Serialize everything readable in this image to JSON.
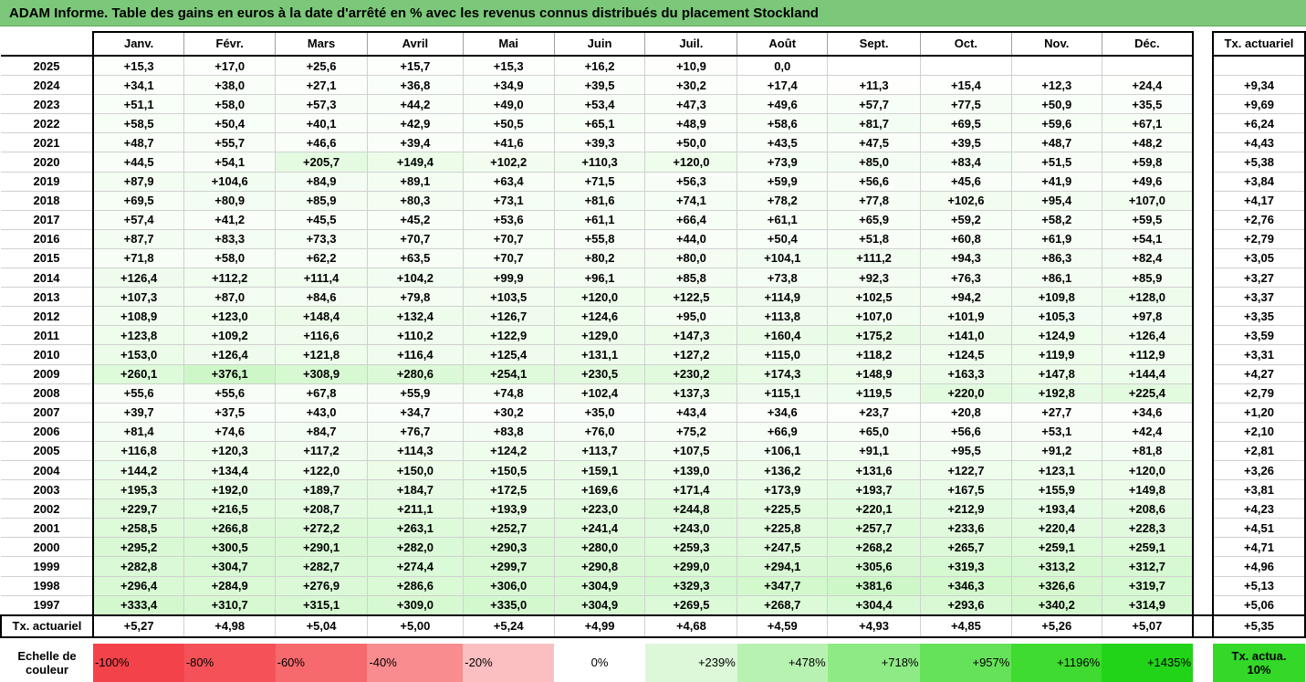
{
  "title": "ADAM Informe. Table des gains en euros à la date d'arrêté en % avec les revenus connus distribués du placement Stockland",
  "months": [
    "Janv.",
    "Févr.",
    "Mars",
    "Avril",
    "Mai",
    "Juin",
    "Juil.",
    "Août",
    "Sept.",
    "Oct.",
    "Nov.",
    "Déc."
  ],
  "act_header": "Tx. actuariel",
  "rows": [
    {
      "year": "2025",
      "vals": [
        "+15,3",
        "+17,0",
        "+25,6",
        "+15,7",
        "+15,3",
        "+16,2",
        "+10,9",
        "0,0",
        "",
        "",
        "",
        ""
      ],
      "act": ""
    },
    {
      "year": "2024",
      "vals": [
        "+34,1",
        "+38,0",
        "+27,1",
        "+36,8",
        "+34,9",
        "+39,5",
        "+30,2",
        "+17,4",
        "+11,3",
        "+15,4",
        "+12,3",
        "+24,4"
      ],
      "act": "+9,34"
    },
    {
      "year": "2023",
      "vals": [
        "+51,1",
        "+58,0",
        "+57,3",
        "+44,2",
        "+49,0",
        "+53,4",
        "+47,3",
        "+49,6",
        "+57,7",
        "+77,5",
        "+50,9",
        "+35,5"
      ],
      "act": "+9,69"
    },
    {
      "year": "2022",
      "vals": [
        "+58,5",
        "+50,4",
        "+40,1",
        "+42,9",
        "+50,5",
        "+65,1",
        "+48,9",
        "+58,6",
        "+81,7",
        "+69,5",
        "+59,6",
        "+67,1"
      ],
      "act": "+6,24"
    },
    {
      "year": "2021",
      "vals": [
        "+48,7",
        "+55,7",
        "+46,6",
        "+39,4",
        "+41,6",
        "+39,3",
        "+50,0",
        "+43,5",
        "+47,5",
        "+39,5",
        "+48,7",
        "+48,2"
      ],
      "act": "+4,43"
    },
    {
      "year": "2020",
      "vals": [
        "+44,5",
        "+54,1",
        "+205,7",
        "+149,4",
        "+102,2",
        "+110,3",
        "+120,0",
        "+73,9",
        "+85,0",
        "+83,4",
        "+51,5",
        "+59,8"
      ],
      "act": "+5,38"
    },
    {
      "year": "2019",
      "vals": [
        "+87,9",
        "+104,6",
        "+84,9",
        "+89,1",
        "+63,4",
        "+71,5",
        "+56,3",
        "+59,9",
        "+56,6",
        "+45,6",
        "+41,9",
        "+49,6"
      ],
      "act": "+3,84"
    },
    {
      "year": "2018",
      "vals": [
        "+69,5",
        "+80,9",
        "+85,9",
        "+80,3",
        "+73,1",
        "+81,6",
        "+74,1",
        "+78,2",
        "+77,8",
        "+102,6",
        "+95,4",
        "+107,0"
      ],
      "act": "+4,17"
    },
    {
      "year": "2017",
      "vals": [
        "+57,4",
        "+41,2",
        "+45,5",
        "+45,2",
        "+53,6",
        "+61,1",
        "+66,4",
        "+61,1",
        "+65,9",
        "+59,2",
        "+58,2",
        "+59,5"
      ],
      "act": "+2,76"
    },
    {
      "year": "2016",
      "vals": [
        "+87,7",
        "+83,3",
        "+73,3",
        "+70,7",
        "+70,7",
        "+55,8",
        "+44,0",
        "+50,4",
        "+51,8",
        "+60,8",
        "+61,9",
        "+54,1"
      ],
      "act": "+2,79"
    },
    {
      "year": "2015",
      "vals": [
        "+71,8",
        "+58,0",
        "+62,2",
        "+63,5",
        "+70,7",
        "+80,2",
        "+80,0",
        "+104,1",
        "+111,2",
        "+94,3",
        "+86,3",
        "+82,4"
      ],
      "act": "+3,05"
    },
    {
      "year": "2014",
      "vals": [
        "+126,4",
        "+112,2",
        "+111,4",
        "+104,2",
        "+99,9",
        "+96,1",
        "+85,8",
        "+73,8",
        "+92,3",
        "+76,3",
        "+86,1",
        "+85,9"
      ],
      "act": "+3,27"
    },
    {
      "year": "2013",
      "vals": [
        "+107,3",
        "+87,0",
        "+84,6",
        "+79,8",
        "+103,5",
        "+120,0",
        "+122,5",
        "+114,9",
        "+102,5",
        "+94,2",
        "+109,8",
        "+128,0"
      ],
      "act": "+3,37"
    },
    {
      "year": "2012",
      "vals": [
        "+108,9",
        "+123,0",
        "+148,4",
        "+132,4",
        "+126,7",
        "+124,6",
        "+95,0",
        "+113,8",
        "+107,0",
        "+101,9",
        "+105,3",
        "+97,8"
      ],
      "act": "+3,35"
    },
    {
      "year": "2011",
      "vals": [
        "+123,8",
        "+109,2",
        "+116,6",
        "+110,2",
        "+122,9",
        "+129,0",
        "+147,3",
        "+160,4",
        "+175,2",
        "+141,0",
        "+124,9",
        "+126,4"
      ],
      "act": "+3,59"
    },
    {
      "year": "2010",
      "vals": [
        "+153,0",
        "+126,4",
        "+121,8",
        "+116,4",
        "+125,4",
        "+131,1",
        "+127,2",
        "+115,0",
        "+118,2",
        "+124,5",
        "+119,9",
        "+112,9"
      ],
      "act": "+3,31"
    },
    {
      "year": "2009",
      "vals": [
        "+260,1",
        "+376,1",
        "+308,9",
        "+280,6",
        "+254,1",
        "+230,5",
        "+230,2",
        "+174,3",
        "+148,9",
        "+163,3",
        "+147,8",
        "+144,4"
      ],
      "act": "+4,27"
    },
    {
      "year": "2008",
      "vals": [
        "+55,6",
        "+55,6",
        "+67,8",
        "+55,9",
        "+74,8",
        "+102,4",
        "+137,3",
        "+115,1",
        "+119,5",
        "+220,0",
        "+192,8",
        "+225,4"
      ],
      "act": "+2,79"
    },
    {
      "year": "2007",
      "vals": [
        "+39,7",
        "+37,5",
        "+43,0",
        "+34,7",
        "+30,2",
        "+35,0",
        "+43,4",
        "+34,6",
        "+23,7",
        "+20,8",
        "+27,7",
        "+34,6"
      ],
      "act": "+1,20"
    },
    {
      "year": "2006",
      "vals": [
        "+81,4",
        "+74,6",
        "+84,7",
        "+76,7",
        "+83,8",
        "+76,0",
        "+75,2",
        "+66,9",
        "+65,0",
        "+56,6",
        "+53,1",
        "+42,4"
      ],
      "act": "+2,10"
    },
    {
      "year": "2005",
      "vals": [
        "+116,8",
        "+120,3",
        "+117,2",
        "+114,3",
        "+124,2",
        "+113,7",
        "+107,5",
        "+106,1",
        "+91,1",
        "+95,5",
        "+91,2",
        "+81,8"
      ],
      "act": "+2,81"
    },
    {
      "year": "2004",
      "vals": [
        "+144,2",
        "+134,4",
        "+122,0",
        "+150,0",
        "+150,5",
        "+159,1",
        "+139,0",
        "+136,2",
        "+131,6",
        "+122,7",
        "+123,1",
        "+120,0"
      ],
      "act": "+3,26"
    },
    {
      "year": "2003",
      "vals": [
        "+195,3",
        "+192,0",
        "+189,7",
        "+184,7",
        "+172,5",
        "+169,6",
        "+171,4",
        "+173,9",
        "+193,7",
        "+167,5",
        "+155,9",
        "+149,8"
      ],
      "act": "+3,81"
    },
    {
      "year": "2002",
      "vals": [
        "+229,7",
        "+216,5",
        "+208,7",
        "+211,1",
        "+193,9",
        "+223,0",
        "+244,8",
        "+225,5",
        "+220,1",
        "+212,9",
        "+193,4",
        "+208,6"
      ],
      "act": "+4,23"
    },
    {
      "year": "2001",
      "vals": [
        "+258,5",
        "+266,8",
        "+272,2",
        "+263,1",
        "+252,7",
        "+241,4",
        "+243,0",
        "+225,8",
        "+257,7",
        "+233,6",
        "+220,4",
        "+228,3"
      ],
      "act": "+4,51"
    },
    {
      "year": "2000",
      "vals": [
        "+295,2",
        "+300,5",
        "+290,1",
        "+282,0",
        "+290,3",
        "+280,0",
        "+259,3",
        "+247,5",
        "+268,2",
        "+265,7",
        "+259,1",
        "+259,1"
      ],
      "act": "+4,71"
    },
    {
      "year": "1999",
      "vals": [
        "+282,8",
        "+304,7",
        "+282,7",
        "+274,4",
        "+299,7",
        "+290,8",
        "+299,0",
        "+294,1",
        "+305,6",
        "+319,3",
        "+313,2",
        "+312,7"
      ],
      "act": "+4,96"
    },
    {
      "year": "1998",
      "vals": [
        "+296,4",
        "+284,9",
        "+276,9",
        "+286,6",
        "+306,0",
        "+304,9",
        "+329,3",
        "+347,7",
        "+381,6",
        "+346,3",
        "+326,6",
        "+319,7"
      ],
      "act": "+5,13"
    },
    {
      "year": "1997",
      "vals": [
        "+333,4",
        "+310,7",
        "+315,1",
        "+309,0",
        "+335,0",
        "+304,9",
        "+269,5",
        "+268,7",
        "+304,4",
        "+293,6",
        "+340,2",
        "+314,9"
      ],
      "act": "+5,06"
    }
  ],
  "total_row": {
    "label": "Tx. actuariel",
    "vals": [
      "+5,27",
      "+4,98",
      "+5,04",
      "+5,00",
      "+5,24",
      "+4,99",
      "+4,68",
      "+4,59",
      "+4,93",
      "+4,85",
      "+5,26",
      "+5,07"
    ],
    "act": "+5,35"
  },
  "scale": {
    "label": "Echelle de couleur",
    "items": [
      {
        "text": "-100%",
        "bg": "#f4424a",
        "align": "left"
      },
      {
        "text": "-80%",
        "bg": "#f45258",
        "align": "left"
      },
      {
        "text": "-60%",
        "bg": "#f66a6e",
        "align": "left"
      },
      {
        "text": "-40%",
        "bg": "#f88c8f",
        "align": "left"
      },
      {
        "text": "-20%",
        "bg": "#fbbfc1",
        "align": "left"
      },
      {
        "text": "0%",
        "bg": "#ffffff",
        "align": "center"
      },
      {
        "text": "+239%",
        "bg": "#dcf8d8",
        "align": "right"
      },
      {
        "text": "+478%",
        "bg": "#b8f2b1",
        "align": "right"
      },
      {
        "text": "+718%",
        "bg": "#8eea84",
        "align": "right"
      },
      {
        "text": "+957%",
        "bg": "#66e25a",
        "align": "right"
      },
      {
        "text": "+1196%",
        "bg": "#3fdb30",
        "align": "right"
      },
      {
        "text": "+1435%",
        "bg": "#22d418",
        "align": "right"
      }
    ],
    "act_text": "Tx. actua. 10%",
    "act_bg": "#33d828"
  }
}
